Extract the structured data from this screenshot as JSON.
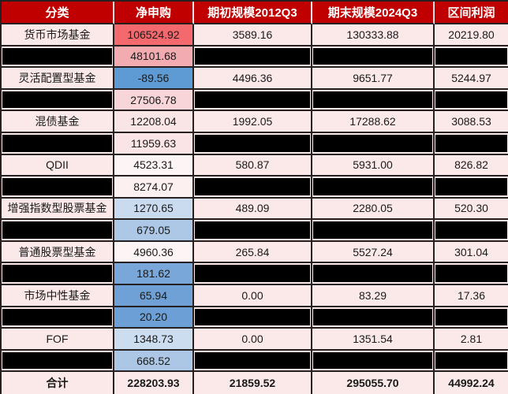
{
  "table": {
    "header": {
      "category": "分类",
      "net": "净申购",
      "begin": "期初规模2012Q3",
      "end": "期末规模2024Q3",
      "profit": "区间利润"
    },
    "rows": [
      {
        "category": "货币市场基金",
        "net": "106524.92",
        "begin": "3589.16",
        "end": "130333.88",
        "profit": "20219.80",
        "net_bg": "#F4696E",
        "redacted": false,
        "bold": false
      },
      {
        "category": null,
        "net": "48101.68",
        "begin": null,
        "end": null,
        "profit": null,
        "net_bg": "#F2ABB0",
        "redacted": true,
        "bold": false
      },
      {
        "category": "灵活配置型基金",
        "net": "-89.56",
        "begin": "4496.36",
        "end": "9651.77",
        "profit": "5244.97",
        "net_bg": "#5E9AD3",
        "redacted": false,
        "bold": false
      },
      {
        "category": null,
        "net": "27506.78",
        "begin": null,
        "end": null,
        "profit": null,
        "net_bg": "#F7D5D8",
        "redacted": true,
        "bold": false
      },
      {
        "category": "混债基金",
        "net": "12208.04",
        "begin": "1992.05",
        "end": "17288.62",
        "profit": "3088.53",
        "net_bg": "#FAE5E6",
        "redacted": false,
        "bold": false
      },
      {
        "category": null,
        "net": "11959.63",
        "begin": null,
        "end": null,
        "profit": null,
        "net_bg": "#FAE4E6",
        "redacted": true,
        "bold": false
      },
      {
        "category": "QDII",
        "net": "4523.31",
        "begin": "580.87",
        "end": "5931.00",
        "profit": "826.82",
        "net_bg": "#FDF5F5",
        "redacted": false,
        "bold": false
      },
      {
        "category": null,
        "net": "8274.07",
        "begin": null,
        "end": null,
        "profit": null,
        "net_bg": "#FCF0F1",
        "redacted": true,
        "bold": false
      },
      {
        "category": "增强指数型股票基金",
        "net": "1270.65",
        "begin": "489.09",
        "end": "2280.05",
        "profit": "520.30",
        "net_bg": "#CBDBEF",
        "redacted": false,
        "bold": false
      },
      {
        "category": null,
        "net": "679.05",
        "begin": null,
        "end": null,
        "profit": null,
        "net_bg": "#ADC8E6",
        "redacted": true,
        "bold": false
      },
      {
        "category": "普通股票型基金",
        "net": "4960.36",
        "begin": "265.84",
        "end": "5527.24",
        "profit": "301.04",
        "net_bg": "#FDF5F5",
        "redacted": false,
        "bold": false
      },
      {
        "category": null,
        "net": "181.62",
        "begin": null,
        "end": null,
        "profit": null,
        "net_bg": "#7AA7D9",
        "redacted": true,
        "bold": false
      },
      {
        "category": "市场中性基金",
        "net": "65.94",
        "begin": "0.00",
        "end": "83.29",
        "profit": "17.36",
        "net_bg": "#6FA1D6",
        "redacted": false,
        "bold": false
      },
      {
        "category": null,
        "net": "20.20",
        "begin": null,
        "end": null,
        "profit": null,
        "net_bg": "#6C9FD5",
        "redacted": true,
        "bold": false
      },
      {
        "category": "FOF",
        "net": "1348.73",
        "begin": "0.00",
        "end": "1351.54",
        "profit": "2.81",
        "net_bg": "#CDDDF0",
        "redacted": false,
        "bold": false
      },
      {
        "category": null,
        "net": "668.52",
        "begin": null,
        "end": null,
        "profit": null,
        "net_bg": "#ABC7E5",
        "redacted": true,
        "bold": false
      },
      {
        "category": "合计",
        "net": "228203.93",
        "begin": "21859.52",
        "end": "295055.70",
        "profit": "44992.24",
        "net_bg": "#FBE9EA",
        "redacted": false,
        "bold": true
      }
    ]
  },
  "colors": {
    "header_bg": "#C00000",
    "header_text": "#FFFFFF",
    "header_divider": "#F6E4E5",
    "row_bg": "#FBE9EA",
    "grid_line": "#262020",
    "redaction_bar": "#000000",
    "body_text": "#1A1A1A",
    "net_scale_high": "#F4696E",
    "net_scale_mid": "#FDF5F5",
    "net_scale_low": "#5E9AD3"
  },
  "chart_data": {
    "type": "table",
    "columns": [
      "分类",
      "净申购",
      "期初规模2012Q3",
      "期末规模2024Q3",
      "区间利润"
    ],
    "rows": [
      [
        "货币市场基金",
        106524.92,
        3589.16,
        130333.88,
        20219.8
      ],
      [
        null,
        48101.68,
        null,
        null,
        null
      ],
      [
        "灵活配置型基金",
        -89.56,
        4496.36,
        9651.77,
        5244.97
      ],
      [
        null,
        27506.78,
        null,
        null,
        null
      ],
      [
        "混债基金",
        12208.04,
        1992.05,
        17288.62,
        3088.53
      ],
      [
        null,
        11959.63,
        null,
        null,
        null
      ],
      [
        "QDII",
        4523.31,
        580.87,
        5931.0,
        826.82
      ],
      [
        null,
        8274.07,
        null,
        null,
        null
      ],
      [
        "增强指数型股票基金",
        1270.65,
        489.09,
        2280.05,
        520.3
      ],
      [
        null,
        679.05,
        null,
        null,
        null
      ],
      [
        "普通股票型基金",
        4960.36,
        265.84,
        5527.24,
        301.04
      ],
      [
        null,
        181.62,
        null,
        null,
        null
      ],
      [
        "市场中性基金",
        65.94,
        0.0,
        83.29,
        17.36
      ],
      [
        null,
        20.2,
        null,
        null,
        null
      ],
      [
        "FOF",
        1348.73,
        0.0,
        1351.54,
        2.81
      ],
      [
        null,
        668.52,
        null,
        null,
        null
      ],
      [
        "合计",
        228203.93,
        21859.52,
        295055.7,
        44992.24
      ]
    ],
    "notes": "净申购 column uses a red(high)-white(mid)-blue(low) 3-color conditional-format scale; alternating rows have all cells except 净申购 blacked out (redacted); last row is bold totals row",
    "legend_position": "none",
    "grid": true
  }
}
